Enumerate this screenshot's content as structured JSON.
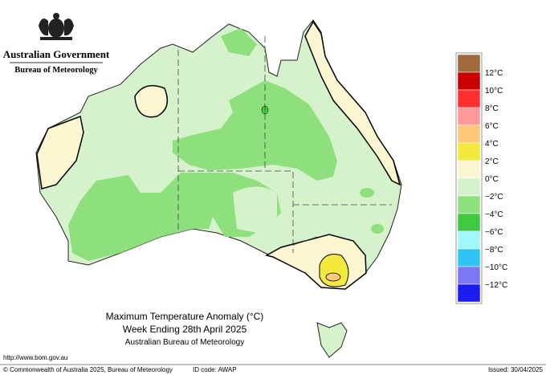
{
  "header": {
    "title": "Australian Government",
    "subtitle": "Bureau of Meteorology"
  },
  "map": {
    "title": "Maximum Temperature Anomaly (°C)",
    "subtitle": "Week Ending 28th April 2025",
    "source": "Australian Bureau of Meteorology"
  },
  "legend": {
    "labels": [
      "12°C",
      "10°C",
      "8°C",
      "6°C",
      "4°C",
      "2°C",
      "0°C",
      "−2°C",
      "−4°C",
      "−6°C",
      "−8°C",
      "−10°C",
      "−12°C"
    ],
    "colors": [
      "#9c6a3c",
      "#c80000",
      "#ff3030",
      "#ff9a9a",
      "#ffc878",
      "#f4ea3c",
      "#fcf6d2",
      "#d6f2cc",
      "#8ee07c",
      "#40c840",
      "#a0f8fc",
      "#30c4f4",
      "#7c78f4",
      "#1c1cf0"
    ]
  },
  "footer": {
    "url": "http://www.bom.gov.au",
    "copyright": "© Commonwealth of Australia 2025, Bureau of Meteorology",
    "id_code": "ID code: AWAP",
    "issued": "Issued: 30/04/2025"
  }
}
